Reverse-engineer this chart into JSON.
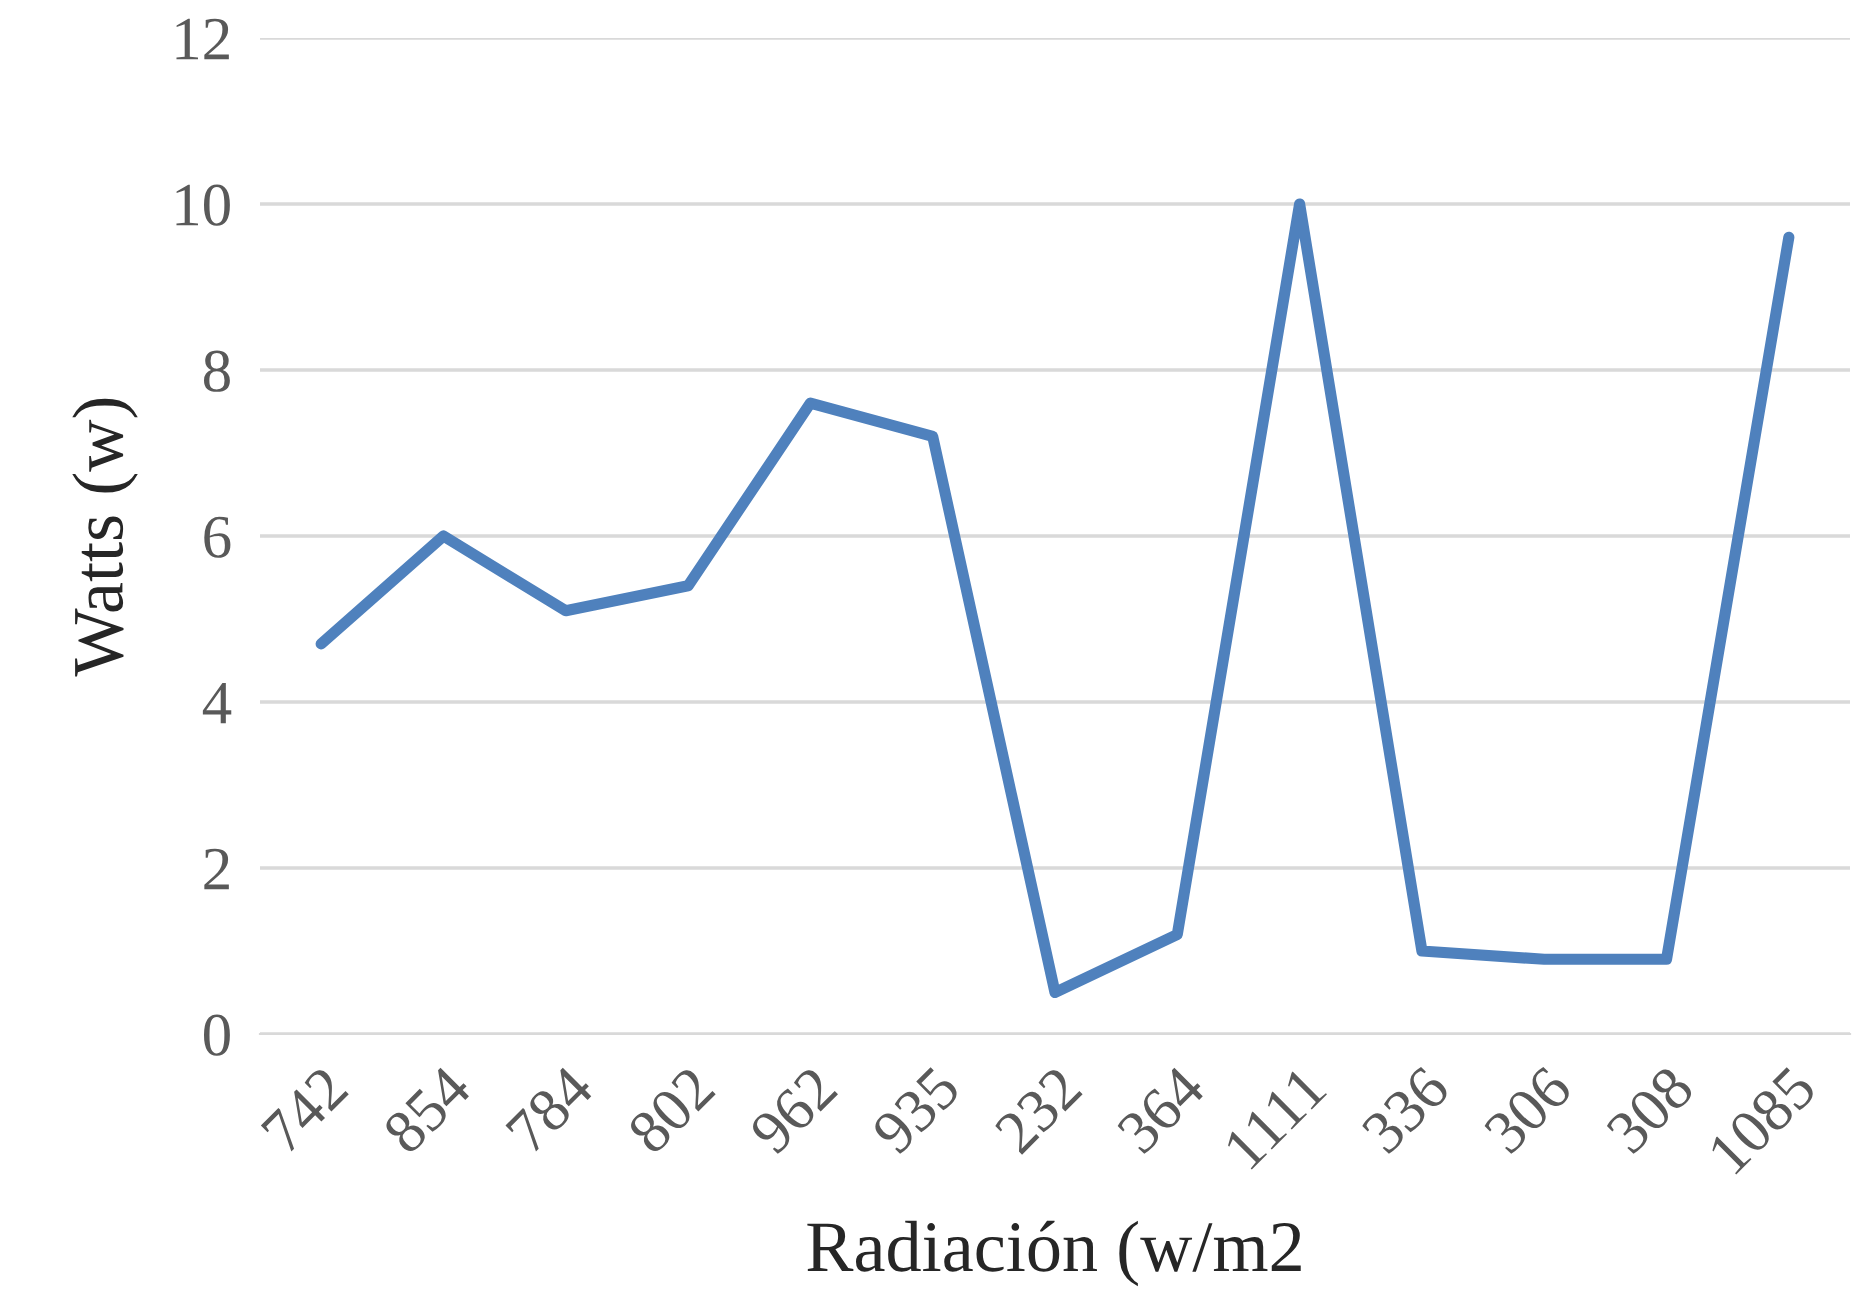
{
  "chart_data": {
    "type": "line",
    "xlabel": "Radiación (w/m2",
    "ylabel": "Watts (w)",
    "categories": [
      "742",
      "854",
      "784",
      "802",
      "962",
      "935",
      "232",
      "364",
      "1111",
      "336",
      "306",
      "308",
      "1085"
    ],
    "series": [
      {
        "color": "#4f81bd",
        "values": [
          4.7,
          6.0,
          5.1,
          5.4,
          7.6,
          7.2,
          0.5,
          1.2,
          10.0,
          1.0,
          0.9,
          0.9,
          9.6
        ]
      }
    ],
    "ylim": [
      0,
      12
    ],
    "yticks": [
      0,
      2,
      4,
      6,
      8,
      10,
      12
    ],
    "grid": "y",
    "legend": false,
    "marker": "none",
    "line_style": "solid"
  }
}
